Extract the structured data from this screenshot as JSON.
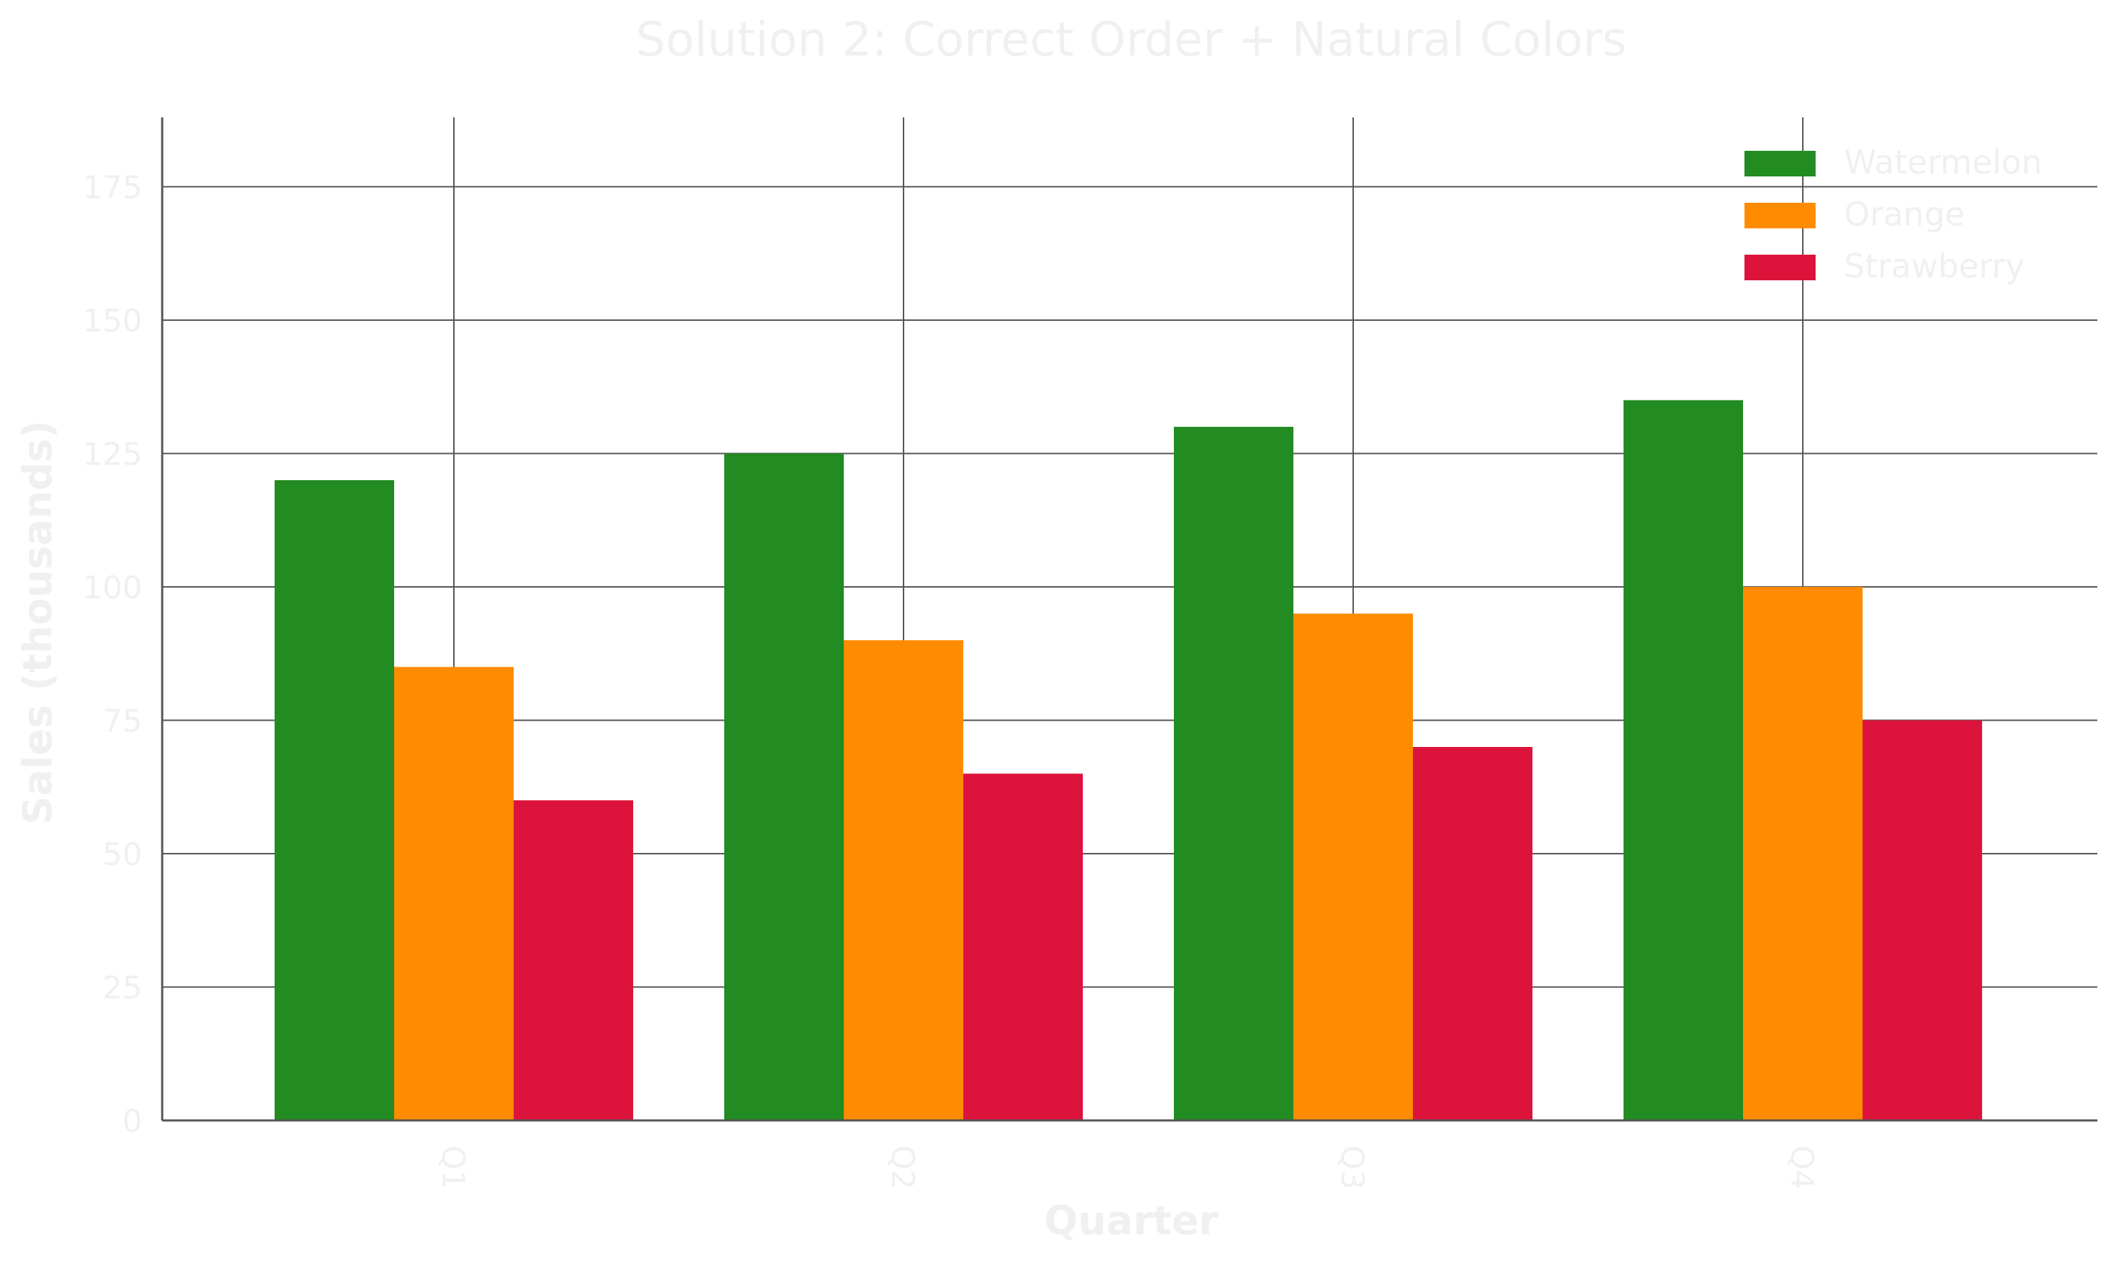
{
  "chart_data": {
    "type": "bar",
    "title": "Solution 2: Correct Order + Natural Colors",
    "xlabel": "Quarter",
    "ylabel": "Sales (thousands)",
    "categories": [
      "Q1",
      "Q2",
      "Q3",
      "Q4"
    ],
    "series": [
      {
        "name": "Watermelon",
        "color": "#228B22",
        "values": [
          120,
          125,
          130,
          135
        ]
      },
      {
        "name": "Orange",
        "color": "#FF8C00",
        "values": [
          85,
          90,
          95,
          100
        ]
      },
      {
        "name": "Strawberry",
        "color": "#DC143C",
        "values": [
          60,
          65,
          70,
          75
        ]
      }
    ],
    "ylim": [
      0,
      188
    ],
    "yticks": [
      0,
      25,
      50,
      75,
      100,
      125,
      150,
      175
    ],
    "xtick_rotation": "vertical",
    "grid": true,
    "legend_position": "top-right"
  }
}
